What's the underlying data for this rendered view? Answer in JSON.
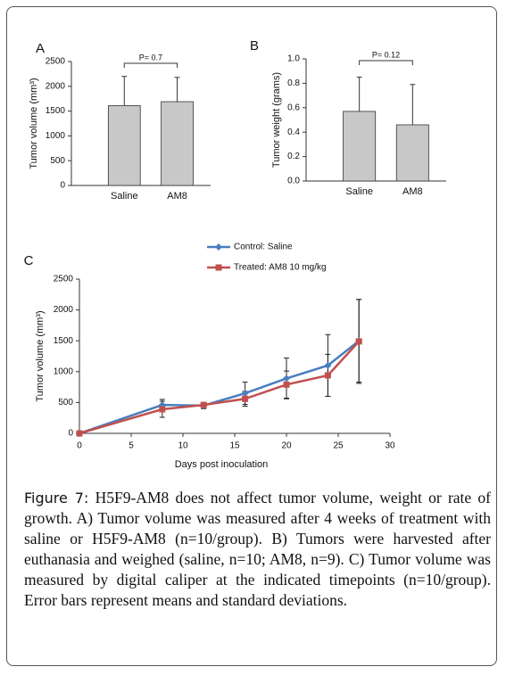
{
  "chart_data": [
    {
      "type": "bar",
      "panel_label": "A",
      "y_label": "Tumor volume (mm³)",
      "categories": [
        "Saline",
        "AM8"
      ],
      "values": [
        1610,
        1690
      ],
      "errors": [
        590,
        490
      ],
      "color": "#c8c8c8",
      "annotation": "P= 0.7",
      "ylim": [
        0,
        2500
      ],
      "yticks": [
        0,
        500,
        1000,
        1500,
        2000,
        2500
      ],
      "grid": false
    },
    {
      "type": "bar",
      "panel_label": "B",
      "y_label": "Tumor weight (grams)",
      "categories": [
        "Saline",
        "AM8"
      ],
      "values": [
        0.57,
        0.46
      ],
      "errors": [
        0.28,
        0.33
      ],
      "color": "#c8c8c8",
      "annotation": "P= 0.12",
      "ylim": [
        0,
        1
      ],
      "yticks": [
        {
          "value": 0,
          "label": "0.0"
        },
        0.2,
        0.4,
        0.6,
        0.8,
        {
          "value": 1,
          "label": "1.0"
        }
      ],
      "grid": false
    },
    {
      "type": "line",
      "panel_label": "C",
      "y_label": "Tumor volume (mm³)",
      "x_label": "Days post inoculation",
      "x": [
        0,
        8,
        12,
        16,
        20,
        24,
        27
      ],
      "series": [
        {
          "name": "Control: Saline",
          "color": "#4a7ebf",
          "marker": "diamond",
          "values": [
            0,
            460,
            450,
            650,
            890,
            1100,
            1500
          ],
          "errors": [
            0,
            90,
            50,
            180,
            330,
            500,
            670
          ]
        },
        {
          "name": "Treated: AM8 10 mg/kg",
          "color": "#c0504d",
          "marker": "square",
          "values": [
            0,
            390,
            460,
            560,
            790,
            940,
            1490
          ],
          "errors": [
            0,
            130,
            40,
            120,
            220,
            340,
            680
          ]
        }
      ],
      "xlim": [
        0,
        30
      ],
      "xticks": [
        0,
        5,
        10,
        15,
        20,
        25,
        30
      ],
      "ylim": [
        0,
        2500
      ],
      "yticks": [
        0,
        500,
        1000,
        1500,
        2000,
        2500
      ],
      "grid": false,
      "legend": "top"
    }
  ],
  "caption": {
    "label": "Figure 7:",
    "text": "H5F9-AM8 does not affect tumor volume, weight or rate of growth. A) Tumor volume was measured after 4 weeks of treatment with saline or H5F9-AM8 (n=10/group). B) Tumors were harvested after euthanasia and weighed (saline, n=10; AM8, n=9). C) Tumor volume was measured by digital caliper at the indicated timepoints (n=10/group). Error bars represent means and standard deviations."
  }
}
